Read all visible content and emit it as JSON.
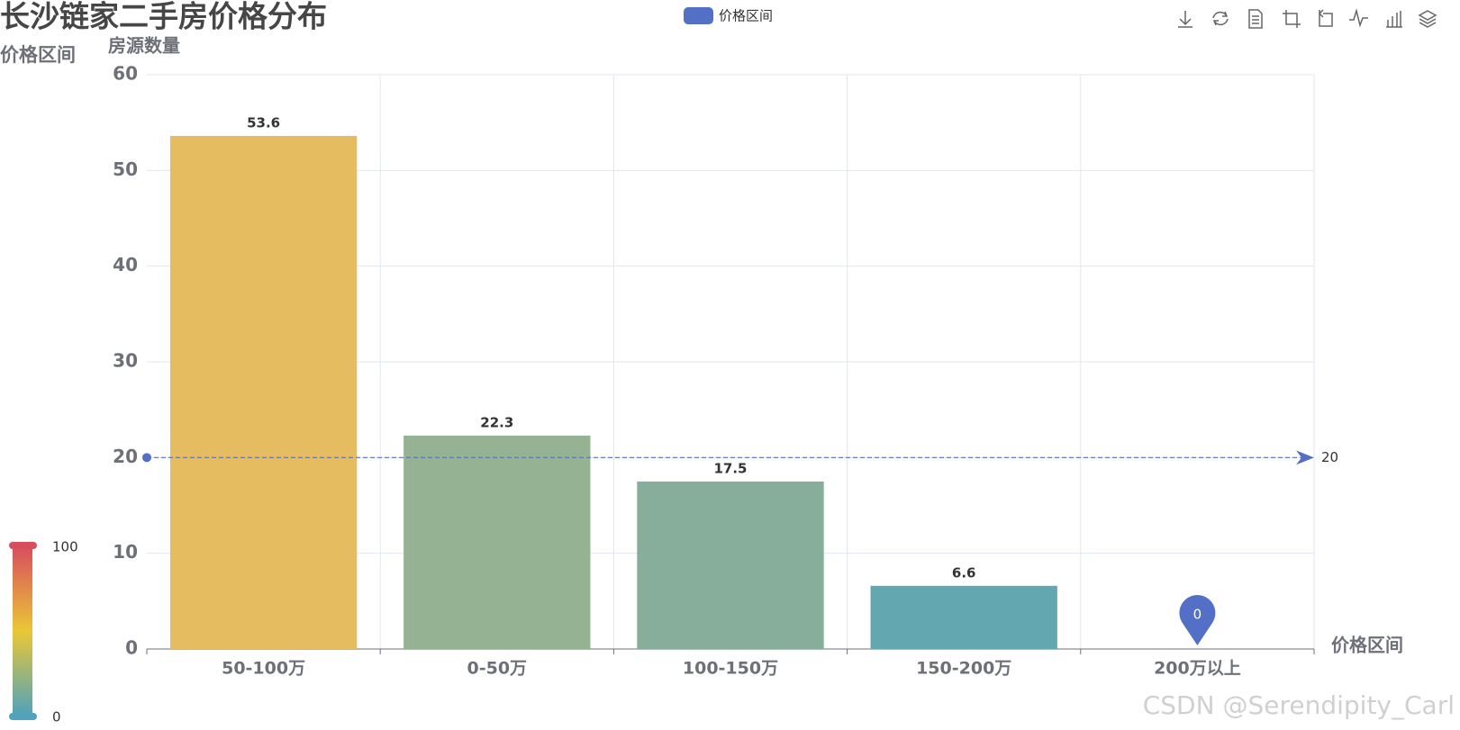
{
  "chart_data": {
    "type": "bar",
    "title": "长沙链家二手房价格分布",
    "subtitle": "价格区间",
    "y_axis_label": "房源数量",
    "x_axis_label": "价格区间",
    "categories": [
      "50-100万",
      "0-50万",
      "100-150万",
      "150-200万",
      "200万以上"
    ],
    "series": [
      {
        "name": "价格区间",
        "color": "#5470c6",
        "values": [
          53.6,
          22.3,
          17.5,
          6.6,
          0
        ],
        "bar_colors": [
          "#e6bc60",
          "#95b293",
          "#87ae9a",
          "#63a7b0",
          "#5fa4b6"
        ]
      }
    ],
    "ylim": [
      0,
      60
    ],
    "yticks": [
      0,
      10,
      20,
      30,
      40,
      50,
      60
    ],
    "grid": true,
    "mark_line": {
      "value": 20,
      "color": "#5470c6"
    },
    "mark_point": {
      "value": 0,
      "color": "#5470c6"
    },
    "visual_map": {
      "min": 0,
      "max": 100,
      "colors": [
        "#50a3ba",
        "#eac736",
        "#d94e5d"
      ]
    },
    "watermark": "CSDN @Serendipity_Carl"
  }
}
